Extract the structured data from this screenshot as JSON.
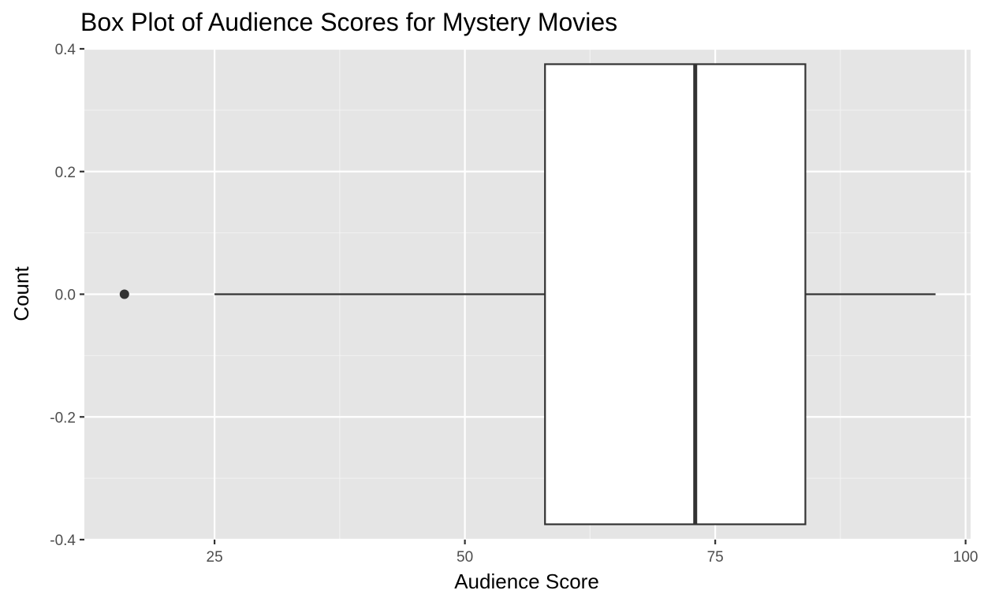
{
  "chart_data": {
    "type": "boxplot",
    "title": "Box Plot of Audience Scores for Mystery Movies",
    "xlabel": "Audience Score",
    "ylabel": "Count",
    "xlim": [
      12,
      100.5
    ],
    "ylim": [
      -0.4,
      0.4
    ],
    "x_ticks": [
      25,
      50,
      75,
      100
    ],
    "y_ticks": [
      0.4,
      0.2,
      0.0,
      -0.2,
      -0.4
    ],
    "x_tick_labels": [
      "25",
      "50",
      "75",
      "100"
    ],
    "y_tick_labels": [
      "0.4",
      "0.2",
      "0.0",
      "-0.2",
      "-0.4"
    ],
    "box": {
      "whisker_low": 25,
      "q1": 58,
      "median": 73,
      "q3": 84,
      "whisker_high": 97,
      "y_center": 0.0,
      "half_width": 0.375
    },
    "outliers": [
      16
    ],
    "grid": true,
    "panel_background": "#e5e5e5",
    "box_fill": "#ffffff",
    "line_color": "#333333"
  }
}
